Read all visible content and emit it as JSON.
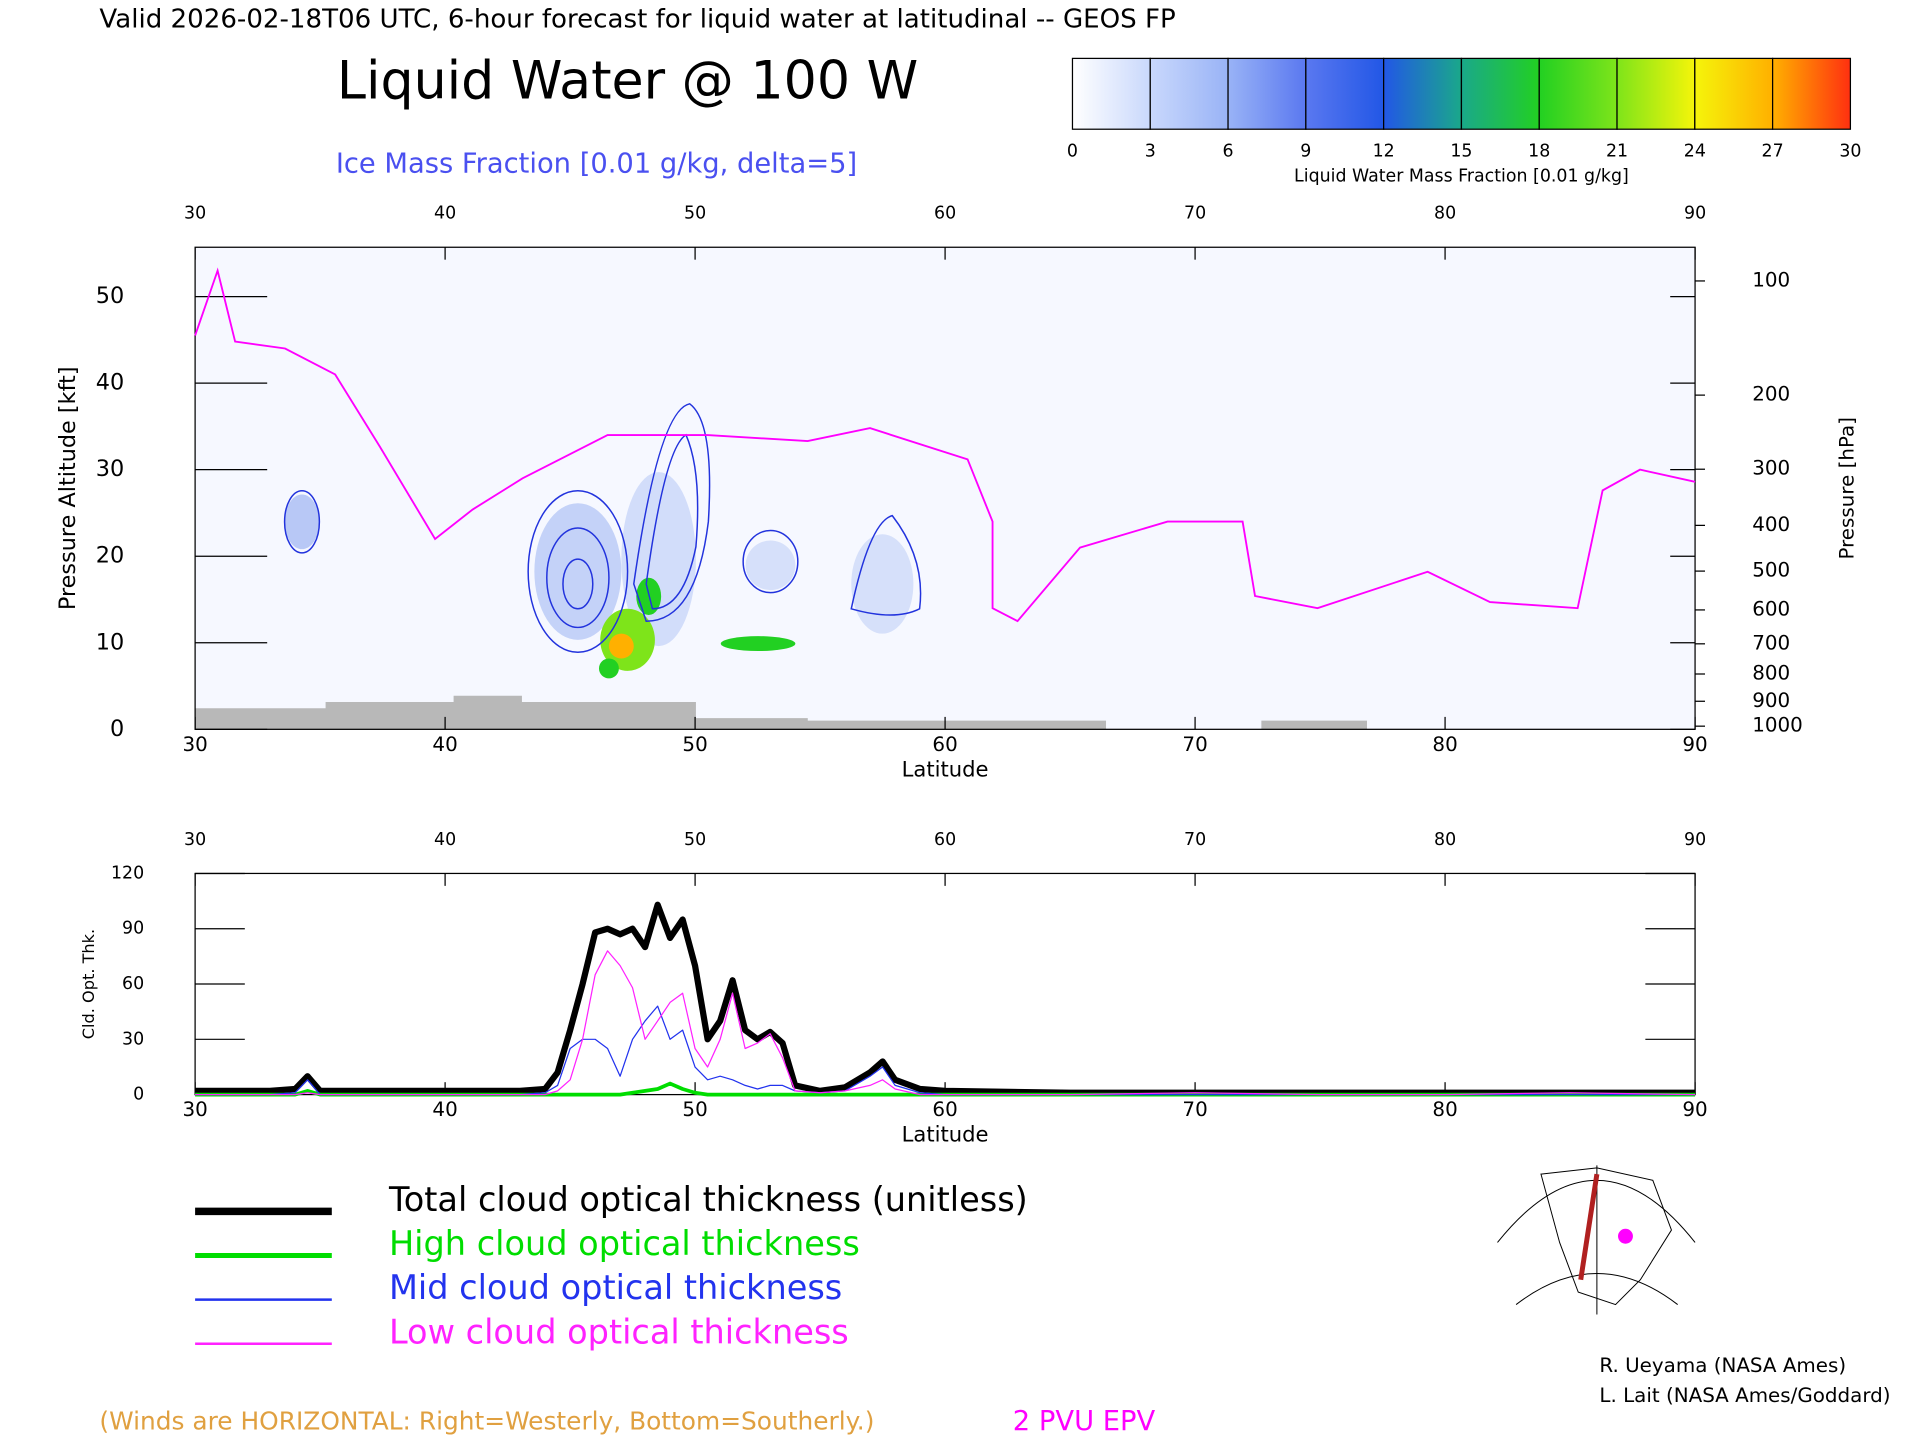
{
  "header": {
    "title": "Valid 2026-02-18T06 UTC, 6-hour forecast for liquid water at latitudinal -- GEOS FP"
  },
  "chart_data": [
    {
      "type": "contour",
      "title": "Liquid Water @ 100 W",
      "subtitle": "Ice Mass Fraction [0.01 g/kg, delta=5]",
      "xlabel": "Latitude",
      "ylabel": "Pressure Altitude [kft]",
      "y2label": "Pressure [hPa]",
      "xlim": [
        30,
        90
      ],
      "xticks": [
        30,
        40,
        50,
        60,
        70,
        80,
        90
      ],
      "ylim": [
        0,
        55.7
      ],
      "yticks": [
        0,
        10,
        20,
        30,
        40,
        50
      ],
      "y2scale": "standard-atmosphere",
      "y2ticks": [
        100,
        200,
        300,
        400,
        500,
        600,
        700,
        800,
        900,
        1000
      ],
      "colorbar": {
        "label": "Liquid Water Mass Fraction [0.01 g/kg]",
        "lim": [
          0,
          30
        ],
        "ticks": [
          0,
          3,
          6,
          9,
          12,
          15,
          18,
          21,
          24,
          27,
          30
        ],
        "colors": [
          "#ffffff",
          "#c9d8fc",
          "#99b3f6",
          "#5a78f0",
          "#2257e6",
          "#1aa88a",
          "#22d022",
          "#7ee41a",
          "#f5f50a",
          "#ffb000",
          "#ff3010"
        ]
      },
      "series": [
        {
          "name": "2 PVU EPV",
          "color": "#ff00ff",
          "x": [
            30,
            30.9,
            31.6,
            33.6,
            35.6,
            37.4,
            39.6,
            41.1,
            43.1,
            46.5,
            50.5,
            54.5,
            57,
            60.9,
            61.9,
            61.9,
            62.9,
            65.4,
            68.9,
            71.9,
            72.4,
            74.9,
            79.3,
            81.8,
            85.3,
            86.3,
            87.8,
            90
          ],
          "values": [
            45.5,
            53,
            44.8,
            44,
            41,
            32.6,
            22,
            25.4,
            29,
            34,
            34,
            33.3,
            34.8,
            31.2,
            24,
            14,
            12.5,
            21,
            24,
            24,
            15.4,
            14,
            18.2,
            14.7,
            14,
            27.6,
            30,
            28.6
          ]
        }
      ],
      "note": "(Winds are HORIZONTAL: Right=Westerly, Bottom=Southerly.)"
    },
    {
      "type": "line",
      "xlabel": "Latitude",
      "ylabel": "Cld. Opt. Thk.",
      "xlim": [
        30,
        90
      ],
      "xticks": [
        30,
        40,
        50,
        60,
        70,
        80,
        90
      ],
      "ylim": [
        0,
        120
      ],
      "yticks": [
        0,
        30,
        60,
        90,
        120
      ],
      "legend": "bottom",
      "x": [
        30,
        33,
        34,
        34.5,
        35,
        36,
        40,
        43,
        44,
        44.5,
        45,
        45.5,
        46,
        46.5,
        47,
        47.5,
        48,
        48.5,
        49,
        49.5,
        50,
        50.5,
        51,
        51.5,
        52,
        52.5,
        53,
        53.5,
        54,
        55,
        56,
        57,
        57.5,
        58,
        59,
        60,
        65,
        70,
        75,
        80,
        85,
        90
      ],
      "series": [
        {
          "name": "Total cloud optical thickness (unitless)",
          "color": "#000000",
          "width": 5,
          "values": [
            2,
            2,
            3,
            10,
            2,
            2,
            2,
            2,
            3,
            12,
            35,
            60,
            88,
            90,
            87,
            90,
            80,
            103,
            85,
            95,
            70,
            30,
            40,
            62,
            35,
            30,
            34,
            28,
            5,
            2,
            4,
            12,
            18,
            8,
            3,
            2,
            1,
            1,
            1,
            1,
            1,
            1
          ]
        },
        {
          "name": "High cloud optical thickness",
          "color": "#00dd00",
          "width": 3,
          "values": [
            0,
            0,
            0,
            2,
            0,
            0,
            0,
            0,
            0,
            0,
            0,
            0,
            0,
            0,
            0,
            1,
            2,
            3,
            6,
            3,
            1,
            0,
            0,
            0,
            0,
            0,
            0,
            0,
            0,
            0,
            0,
            0,
            0,
            0,
            0,
            0,
            0,
            0,
            0,
            0,
            0,
            0
          ]
        },
        {
          "name": "Mid cloud optical thickness",
          "color": "#2233ee",
          "width": 1,
          "values": [
            0,
            0,
            1,
            8,
            0,
            0,
            0,
            0,
            1,
            5,
            25,
            30,
            30,
            25,
            10,
            30,
            40,
            48,
            30,
            35,
            15,
            8,
            10,
            8,
            5,
            3,
            5,
            5,
            2,
            1,
            2,
            10,
            15,
            5,
            1,
            0,
            0,
            0,
            0,
            0,
            0,
            0
          ]
        },
        {
          "name": "Low cloud optical thickness",
          "color": "#ff22ff",
          "width": 1,
          "values": [
            0,
            0,
            0,
            1,
            0,
            0,
            0,
            0,
            0,
            2,
            8,
            30,
            65,
            78,
            70,
            58,
            30,
            40,
            50,
            55,
            25,
            15,
            30,
            55,
            25,
            28,
            33,
            20,
            2,
            1,
            2,
            5,
            8,
            3,
            0,
            0,
            0,
            1,
            0,
            0,
            1,
            0
          ]
        }
      ]
    }
  ],
  "credits": [
    "R. Ueyama (NASA Ames)",
    "L. Lait (NASA Ames/Goddard)"
  ]
}
